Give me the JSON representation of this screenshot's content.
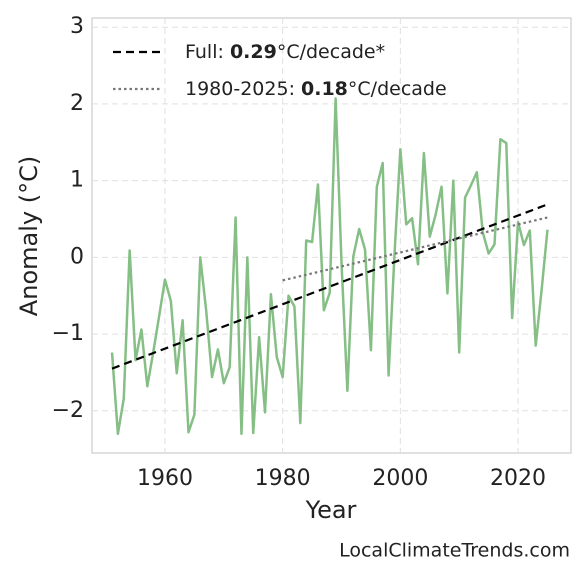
{
  "chart_data": {
    "type": "line",
    "x_label": "Year",
    "y_label": "Anomaly (°C)",
    "watermark": "LocalClimateTrends.com",
    "xlim": [
      1947.6,
      2029
    ],
    "ylim": [
      -2.55,
      3.12
    ],
    "xticks": [
      1960,
      1980,
      2000,
      2020
    ],
    "yticks": [
      {
        "value": -2,
        "label": "−2"
      },
      {
        "value": -1,
        "label": "−1"
      },
      0,
      1,
      2,
      3
    ],
    "grid": true,
    "legend": "upper left",
    "x": [
      1951,
      1952,
      1953,
      1954,
      1955,
      1956,
      1957,
      1958,
      1959,
      1960,
      1961,
      1962,
      1963,
      1964,
      1965,
      1966,
      1967,
      1968,
      1969,
      1970,
      1971,
      1972,
      1973,
      1974,
      1975,
      1976,
      1977,
      1978,
      1979,
      1980,
      1981,
      1982,
      1983,
      1984,
      1985,
      1986,
      1987,
      1988,
      1989,
      1990,
      1991,
      1992,
      1993,
      1994,
      1995,
      1996,
      1997,
      1998,
      1999,
      2000,
      2001,
      2002,
      2003,
      2004,
      2005,
      2006,
      2007,
      2008,
      2009,
      2010,
      2011,
      2012,
      2013,
      2014,
      2015,
      2016,
      2017,
      2018,
      2019,
      2020,
      2021,
      2022,
      2023,
      2024,
      2025
    ],
    "series": [
      {
        "color": "#86bf86",
        "values": [
          -1.24,
          -2.3,
          -1.84,
          0.09,
          -1.34,
          -0.94,
          -1.68,
          -1.24,
          -0.77,
          -0.29,
          -0.57,
          -1.51,
          -0.82,
          -2.28,
          -2.05,
          0.0,
          -0.69,
          -1.56,
          -1.2,
          -1.64,
          -1.43,
          0.52,
          -2.3,
          0.0,
          -2.29,
          -1.04,
          -2.02,
          -0.48,
          -1.3,
          -1.56,
          -0.5,
          -0.64,
          -2.16,
          0.22,
          0.2,
          0.95,
          -0.69,
          -0.46,
          2.07,
          -0.07,
          -1.74,
          0.01,
          0.37,
          0.1,
          -1.21,
          0.92,
          1.23,
          -1.54,
          0.03,
          1.41,
          0.43,
          0.51,
          -0.09,
          1.36,
          0.27,
          0.56,
          0.92,
          -0.47,
          1.0,
          -1.24,
          0.78,
          0.94,
          1.11,
          0.33,
          0.05,
          0.17,
          1.54,
          1.49,
          -0.79,
          0.46,
          0.16,
          0.35,
          -1.15,
          -0.43,
          0.36
        ]
      }
    ],
    "trends": [
      {
        "name_prefix": "Full: ",
        "slope": 0.29,
        "name_suffix": "°C/decade*",
        "color": "#000000",
        "dash": "8 5",
        "x": [
          1951,
          2025
        ],
        "values": [
          -1.45,
          0.69
        ]
      },
      {
        "name_prefix": "1980-2025: ",
        "slope": 0.18,
        "name_suffix": "°C/decade",
        "color": "#777777",
        "dash": "2.5 3",
        "x": [
          1980,
          2025
        ],
        "values": [
          -0.3,
          0.52
        ]
      }
    ]
  }
}
